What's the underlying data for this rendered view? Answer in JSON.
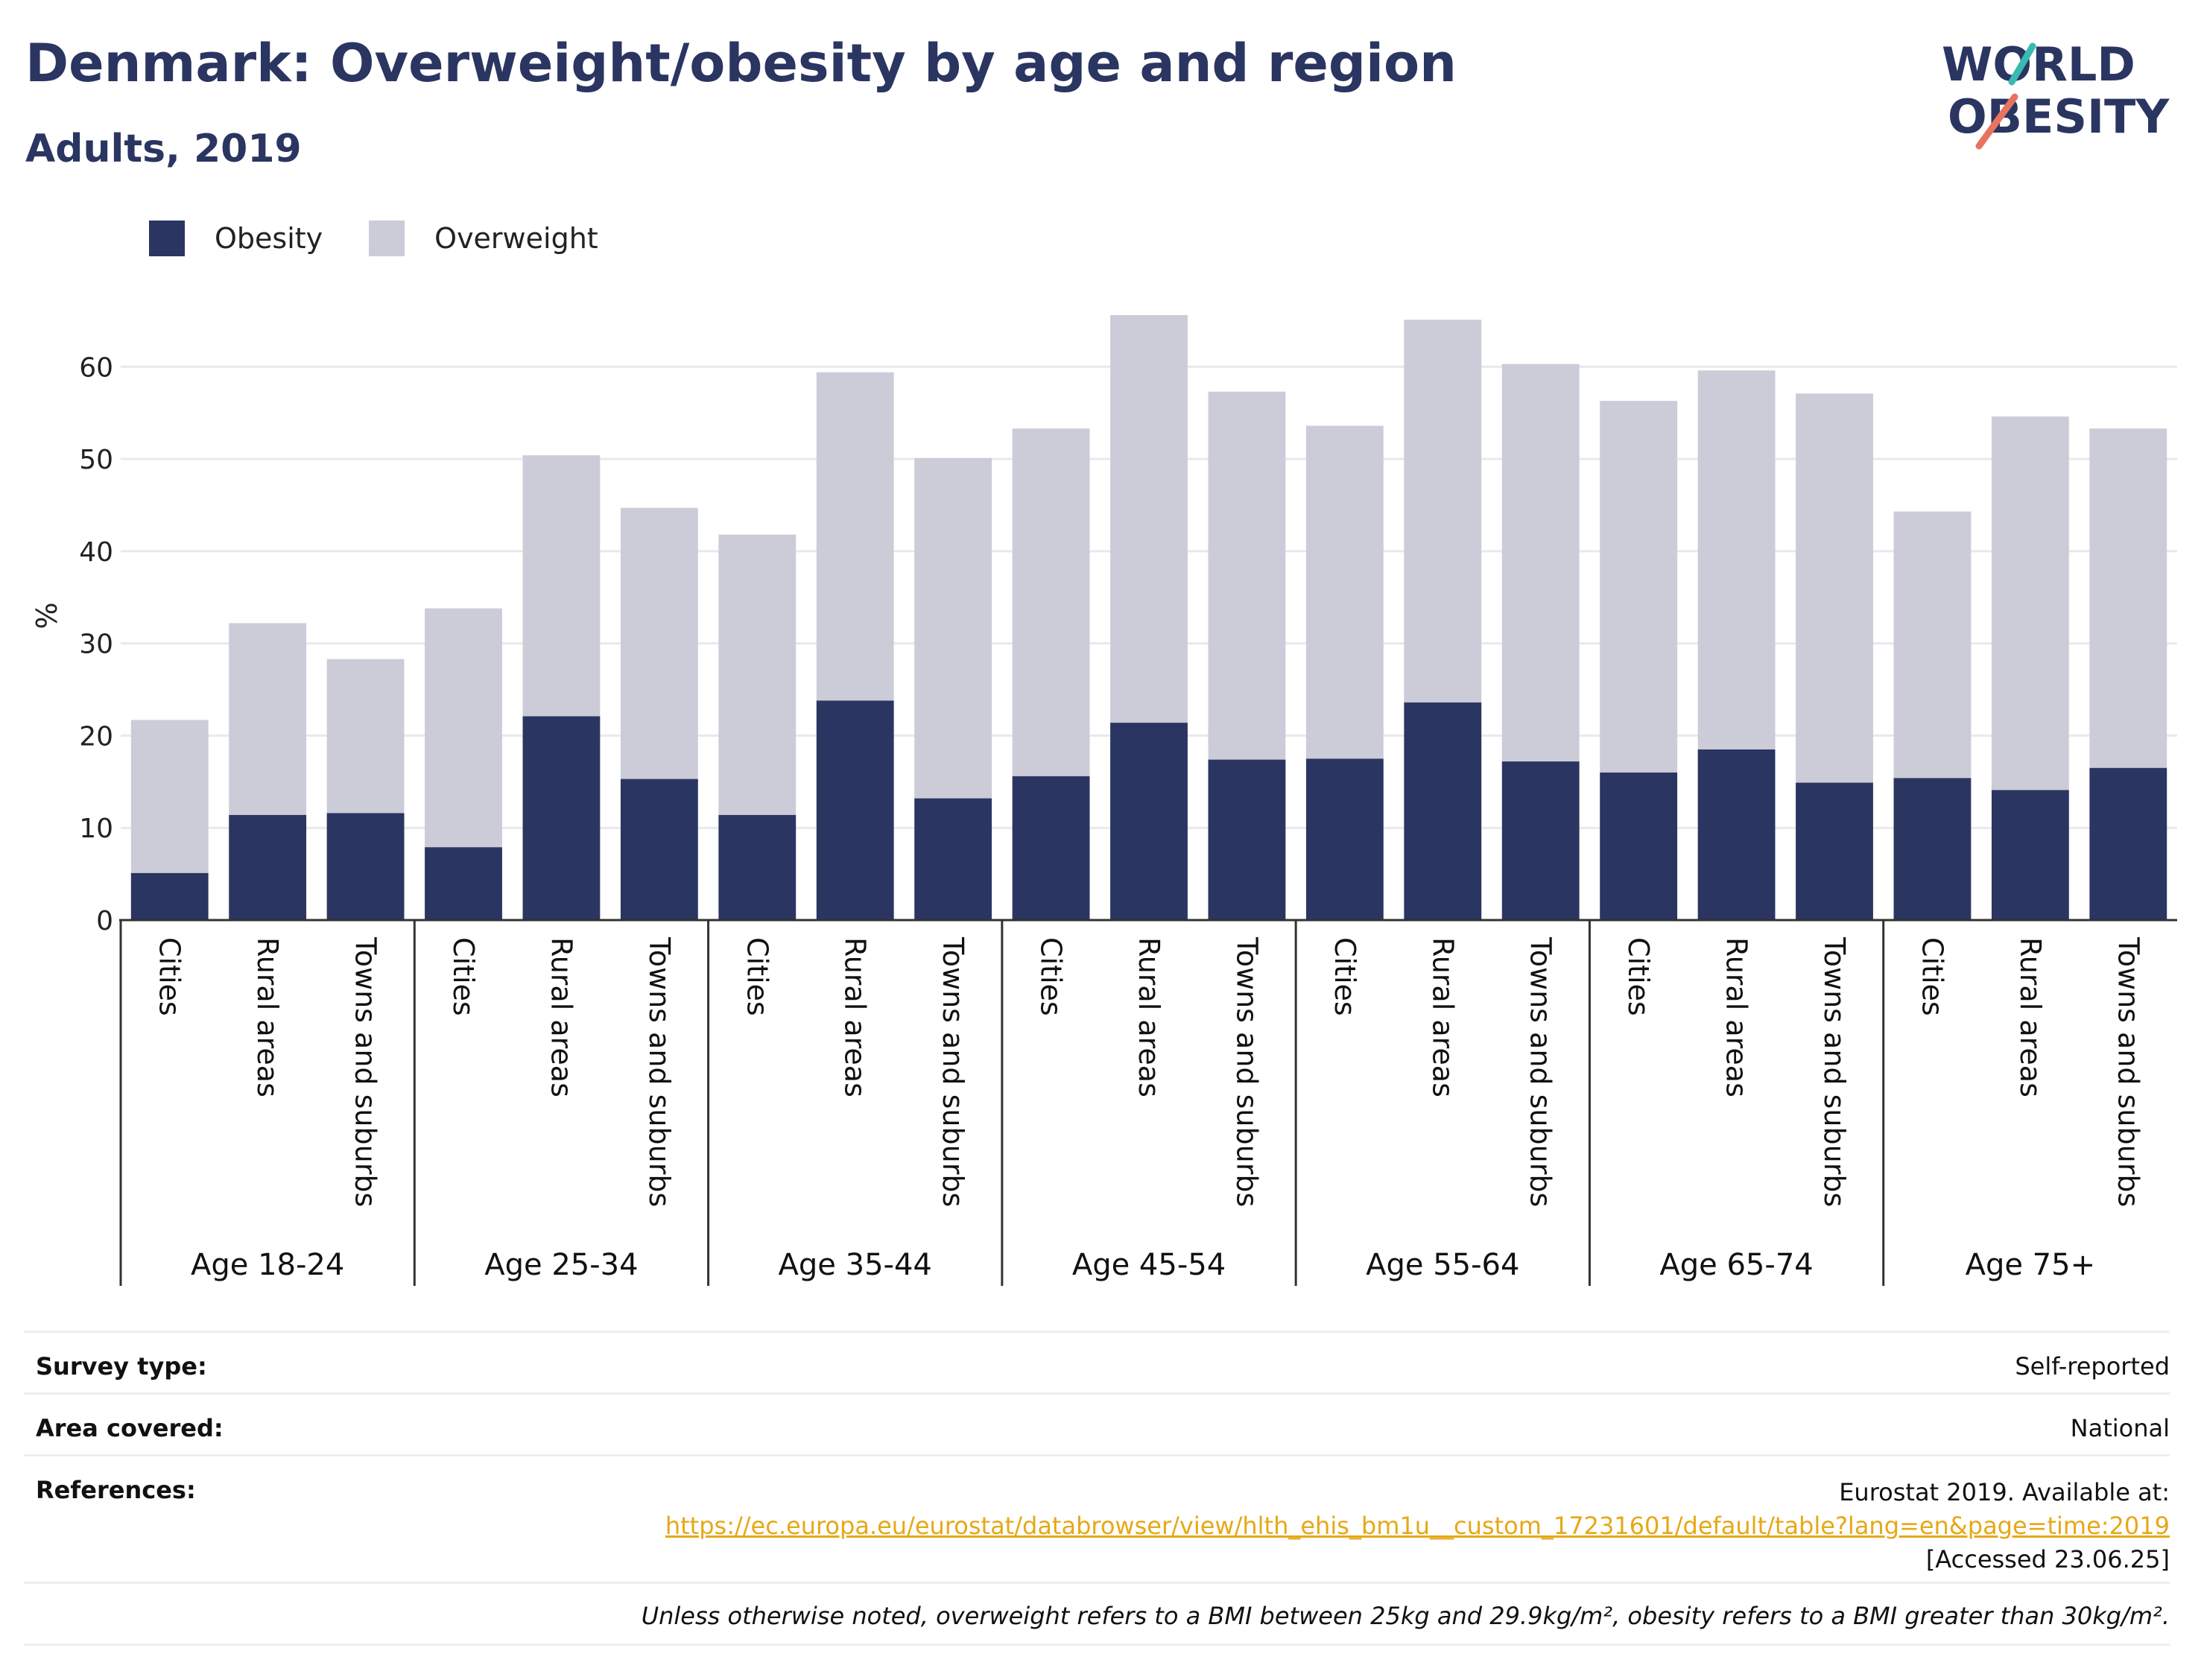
{
  "header": {
    "title": "Denmark: Overweight/obesity by age and region",
    "subtitle": "Adults, 2019"
  },
  "logo": {
    "line1": "WORLD",
    "line2": "OBESITY"
  },
  "legend": {
    "obesity": "Obesity",
    "overweight": "Overweight"
  },
  "colors": {
    "obesity": "#2b3561",
    "overweight": "#cbccd8",
    "grid": "#e8e9ee",
    "axis": "#333333",
    "link": "#e6a817"
  },
  "chart_data": {
    "type": "bar",
    "stacked": true,
    "ylabel": "%",
    "ylim": [
      0,
      66
    ],
    "yticks": [
      0,
      10,
      20,
      30,
      40,
      50,
      60
    ],
    "grid": true,
    "legend_position": "top-left",
    "groups": [
      "Age 18-24",
      "Age 25-34",
      "Age 35-44",
      "Age 45-54",
      "Age 55-64",
      "Age 65-74",
      "Age 75+"
    ],
    "subcategories": [
      "Cities",
      "Rural areas",
      "Towns and suburbs"
    ],
    "series": [
      {
        "name": "Obesity",
        "values": [
          [
            5.1,
            11.4,
            11.6
          ],
          [
            7.9,
            22.1,
            15.3
          ],
          [
            11.4,
            23.8,
            13.2
          ],
          [
            15.6,
            21.4,
            17.4
          ],
          [
            17.5,
            23.6,
            17.2
          ],
          [
            16.0,
            18.5,
            14.9
          ],
          [
            15.4,
            14.1,
            16.5
          ]
        ]
      },
      {
        "name": "Overweight",
        "values": [
          [
            16.6,
            20.8,
            16.7
          ],
          [
            25.9,
            28.3,
            29.4
          ],
          [
            30.4,
            35.6,
            36.9
          ],
          [
            37.7,
            44.2,
            39.9
          ],
          [
            36.1,
            41.5,
            43.1
          ],
          [
            40.3,
            41.1,
            42.2
          ],
          [
            28.9,
            40.5,
            36.8
          ]
        ]
      }
    ]
  },
  "info": {
    "survey_type_label": "Survey type:",
    "survey_type_value": "Self-reported",
    "area_label": "Area covered:",
    "area_value": "National",
    "references_label": "References:",
    "references_line1": "Eurostat 2019. Available at:",
    "references_url": "https://ec.europa.eu/eurostat/databrowser/view/hlth_ehis_bm1u__custom_17231601/default/table?lang=en&page=time:2019",
    "references_accessed": "[Accessed 23.06.25]",
    "footnote": "Unless otherwise noted, overweight refers to a BMI between 25kg and 29.9kg/m², obesity refers to a BMI greater than 30kg/m²."
  }
}
